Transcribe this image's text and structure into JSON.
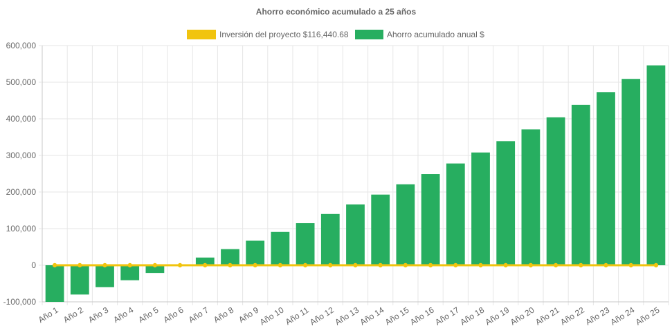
{
  "chart_data": {
    "type": "bar",
    "title": "Ahorro económico acumulado a 25 años",
    "categories": [
      "Año 1",
      "Año 2",
      "Año 3",
      "Año 4",
      "Año 5",
      "Año 6",
      "Año 7",
      "Año 8",
      "Año 9",
      "Año 10",
      "Año 11",
      "Año 12",
      "Año 13",
      "Año 14",
      "Año 15",
      "Año 16",
      "Año 17",
      "Año 18",
      "Año 19",
      "Año 20",
      "Año 21",
      "Año 22",
      "Año 23",
      "Año 24",
      "Año 25"
    ],
    "series": [
      {
        "name": "Inversión del proyecto $116,440.68",
        "type": "line",
        "color": "#f1c40f",
        "values": [
          0,
          0,
          0,
          0,
          0,
          0,
          0,
          0,
          0,
          0,
          0,
          0,
          0,
          0,
          0,
          0,
          0,
          0,
          0,
          0,
          0,
          0,
          0,
          0,
          0
        ]
      },
      {
        "name": "Ahorro acumulado anual $",
        "type": "bar",
        "color": "#27ae60",
        "values": [
          -100000,
          -80000,
          -60000,
          -41000,
          -21000,
          -1000,
          21000,
          44000,
          67000,
          91000,
          115000,
          140000,
          166000,
          193000,
          221000,
          249000,
          278000,
          308000,
          339000,
          371000,
          404000,
          438000,
          473000,
          509000,
          546000
        ]
      }
    ],
    "yticks": [
      "600,000",
      "500,000",
      "400,000",
      "300,000",
      "200,000",
      "100,000",
      "0",
      "-100,000"
    ],
    "ylim": [
      -100000,
      600000
    ],
    "grid": true,
    "legend": "top"
  }
}
